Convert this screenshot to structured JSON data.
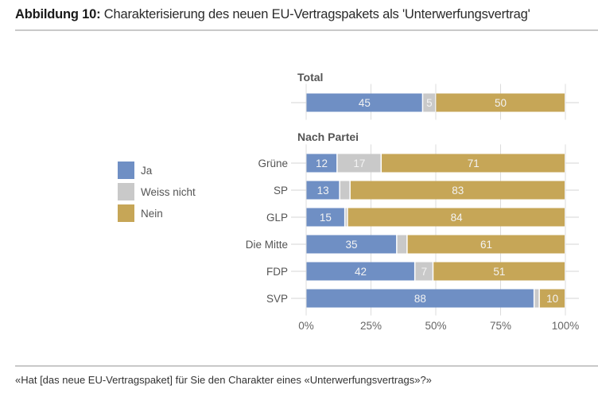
{
  "header": {
    "title_bold": "Abbildung 10:",
    "title_rest": " Charakterisierung des neuen EU-Vertragspakets als 'Unterwerfungsvertrag'"
  },
  "footnote": "«Hat [das neue EU-Vertragspaket] für Sie den Charakter eines «Unterwerfungsvertrags»?»",
  "chart_data": {
    "type": "bar",
    "orientation": "horizontal",
    "stacked": true,
    "title": "Charakterisierung des neuen EU-Vertragspakets als 'Unterwerfungsvertrag'",
    "xlabel": "",
    "ylabel": "",
    "xlim": [
      0,
      100
    ],
    "x_ticks": [
      "0%",
      "25%",
      "50%",
      "75%",
      "100%"
    ],
    "grid": true,
    "legend_position": "left",
    "colors": {
      "Ja": "#6f8fc4",
      "Weiss nicht": "#c9c9c9",
      "Nein": "#c6a657"
    },
    "legend": [
      "Ja",
      "Weiss nicht",
      "Nein"
    ],
    "sections": [
      {
        "label": "Total",
        "categories": [
          "Total"
        ],
        "series": [
          {
            "name": "Ja",
            "values": [
              45
            ]
          },
          {
            "name": "Weiss nicht",
            "values": [
              5
            ]
          },
          {
            "name": "Nein",
            "values": [
              50
            ]
          }
        ],
        "show_category_labels": false
      },
      {
        "label": "Nach Partei",
        "categories": [
          "Grüne",
          "SP",
          "GLP",
          "Die Mitte",
          "FDP",
          "SVP"
        ],
        "series": [
          {
            "name": "Ja",
            "values": [
              12,
              13,
              15,
              35,
              42,
              88
            ]
          },
          {
            "name": "Weiss nicht",
            "values": [
              17,
              4,
              1,
              4,
              7,
              2
            ]
          },
          {
            "name": "Nein",
            "values": [
              71,
              83,
              84,
              61,
              51,
              10
            ]
          }
        ],
        "show_category_labels": true
      }
    ],
    "label_min_value": 5
  }
}
